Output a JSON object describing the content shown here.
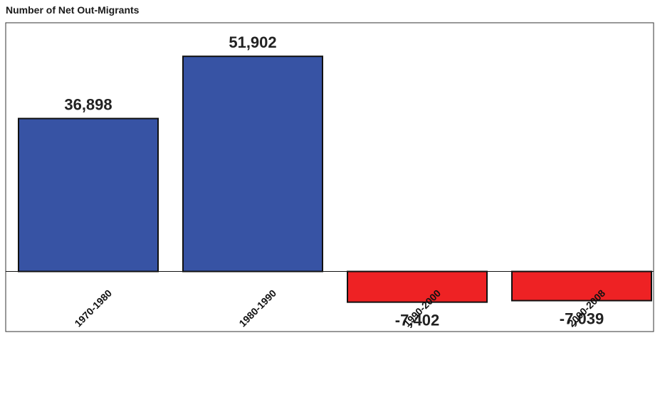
{
  "chart_data": {
    "type": "bar",
    "title": "Number of Net Out-Migrants",
    "categories": [
      "1970-1980",
      "1980-1990",
      "1990-2000",
      "2000-2008"
    ],
    "values": [
      36898,
      51902,
      -7402,
      -7039
    ],
    "data_labels": [
      "36,898",
      "51,902",
      "-7,402",
      "-7,039"
    ],
    "ylim": [
      -14500,
      60000
    ],
    "grid": false,
    "legend": "none",
    "colors": {
      "positive": "#3753a4",
      "negative": "#ee2224",
      "outline": "#111111",
      "frame": "#333333"
    }
  }
}
